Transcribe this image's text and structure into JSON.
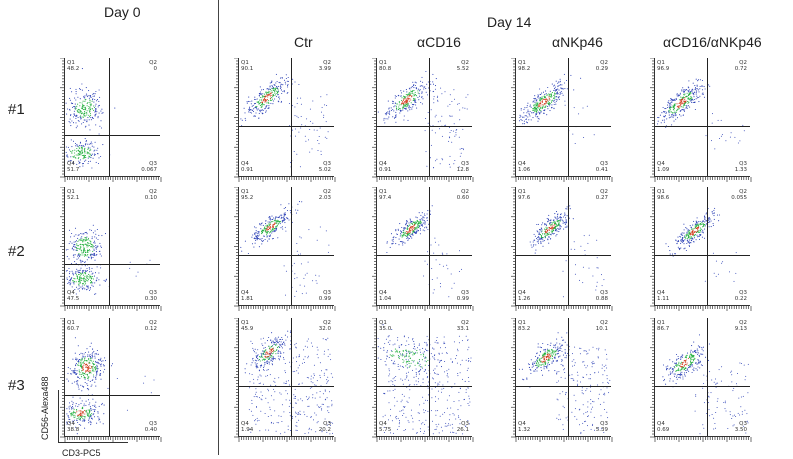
{
  "headers": {
    "day0": "Day 0",
    "day14": "Day 14",
    "columns": [
      "Ctr",
      "αCD16",
      "αNKp46",
      "αCD16/αNKp46"
    ]
  },
  "rows": [
    "#1",
    "#2",
    "#3"
  ],
  "axes": {
    "y_label": "CD56-Alexa488",
    "x_label": "CD3-PC5"
  },
  "colors": {
    "dense": "#d23b1e",
    "mid": "#1fae3b",
    "sparse": "#2a3fb5"
  },
  "plots": [
    {
      "id": "r1-day0",
      "q1": "48.2",
      "q2": "0",
      "q3": "0.067",
      "q4": "51.7"
    },
    {
      "id": "r1-ctr",
      "q1": "90.1",
      "q2": "3.99",
      "q3": "5.02",
      "q4": "0.91"
    },
    {
      "id": "r1-cd16",
      "q1": "80.8",
      "q2": "5.52",
      "q3": "12.8",
      "q4": "0.91"
    },
    {
      "id": "r1-nkp46",
      "q1": "98.2",
      "q2": "0.29",
      "q3": "0.41",
      "q4": "1.06"
    },
    {
      "id": "r1-both",
      "q1": "96.9",
      "q2": "0.72",
      "q3": "1.33",
      "q4": "1.09"
    },
    {
      "id": "r2-day0",
      "q1": "52.1",
      "q2": "0.10",
      "q3": "0.30",
      "q4": "47.5"
    },
    {
      "id": "r2-ctr",
      "q1": "95.2",
      "q2": "2.03",
      "q3": "0.99",
      "q4": "1.81"
    },
    {
      "id": "r2-cd16",
      "q1": "97.4",
      "q2": "0.60",
      "q3": "0.99",
      "q4": "1.04"
    },
    {
      "id": "r2-nkp46",
      "q1": "97.6",
      "q2": "0.27",
      "q3": "0.88",
      "q4": "1.26"
    },
    {
      "id": "r2-both",
      "q1": "98.6",
      "q2": "0.055",
      "q3": "0.22",
      "q4": "1.11"
    },
    {
      "id": "r3-day0",
      "q1": "60.7",
      "q2": "0.12",
      "q3": "0.40",
      "q4": "38.8"
    },
    {
      "id": "r3-ctr",
      "q1": "45.9",
      "q2": "32.0",
      "q3": "20.2",
      "q4": "1.94"
    },
    {
      "id": "r3-cd16",
      "q1": "35.0",
      "q2": "33.1",
      "q3": "26.1",
      "q4": "5.75"
    },
    {
      "id": "r3-nkp46",
      "q1": "83.2",
      "q2": "10.1",
      "q3": "5.39",
      "q4": "1.32"
    },
    {
      "id": "r3-both",
      "q1": "86.7",
      "q2": "9.13",
      "q3": "3.50",
      "q4": "0.69"
    }
  ]
}
